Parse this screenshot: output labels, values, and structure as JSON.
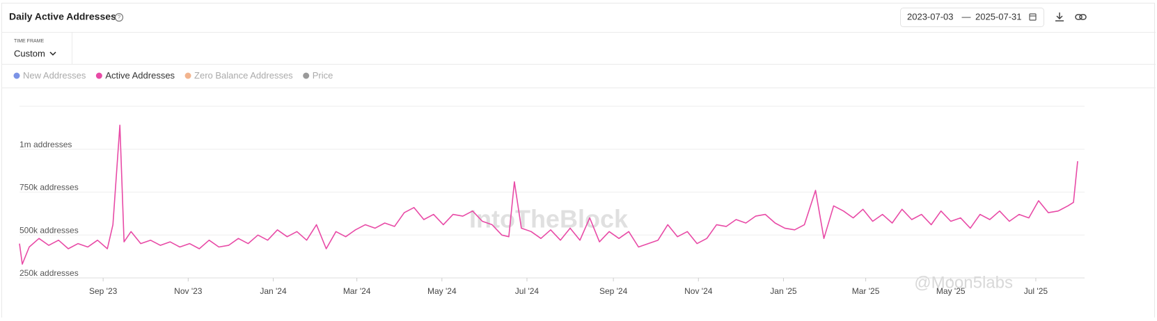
{
  "header": {
    "title": "Daily Active Addresses",
    "date_from": "2023-07-03",
    "separator": "—",
    "date_to": "2025-07-31"
  },
  "controls": {
    "timeframe_label": "TIME FRAME",
    "timeframe": "Custom"
  },
  "chart_data": {
    "type": "line",
    "hidden_series": [
      {
        "name": "New Addresses",
        "color": "#7b93e6"
      },
      {
        "name": "Zero Balance Addresses",
        "color": "#f2b48e"
      },
      {
        "name": "Price",
        "color": "#9a9a9a"
      }
    ],
    "x": [
      "2023-07-03",
      "2023-07-05",
      "2023-07-10",
      "2023-07-17",
      "2023-07-24",
      "2023-07-31",
      "2023-08-07",
      "2023-08-14",
      "2023-08-21",
      "2023-08-28",
      "2023-09-04",
      "2023-09-08",
      "2023-09-13",
      "2023-09-16",
      "2023-09-21",
      "2023-09-28",
      "2023-10-05",
      "2023-10-12",
      "2023-10-19",
      "2023-10-26",
      "2023-11-02",
      "2023-11-09",
      "2023-11-16",
      "2023-11-23",
      "2023-11-30",
      "2023-12-07",
      "2023-12-14",
      "2023-12-21",
      "2023-12-28",
      "2024-01-04",
      "2024-01-11",
      "2024-01-18",
      "2024-01-25",
      "2024-02-01",
      "2024-02-08",
      "2024-02-15",
      "2024-02-22",
      "2024-02-29",
      "2024-03-07",
      "2024-03-14",
      "2024-03-21",
      "2024-03-28",
      "2024-04-04",
      "2024-04-11",
      "2024-04-18",
      "2024-04-25",
      "2024-05-02",
      "2024-05-09",
      "2024-05-16",
      "2024-05-23",
      "2024-05-30",
      "2024-06-06",
      "2024-06-13",
      "2024-06-18",
      "2024-06-22",
      "2024-06-27",
      "2024-07-04",
      "2024-07-11",
      "2024-07-18",
      "2024-07-25",
      "2024-08-01",
      "2024-08-08",
      "2024-08-15",
      "2024-08-22",
      "2024-08-29",
      "2024-09-05",
      "2024-09-12",
      "2024-09-19",
      "2024-09-26",
      "2024-10-03",
      "2024-10-10",
      "2024-10-17",
      "2024-10-24",
      "2024-10-31",
      "2024-11-07",
      "2024-11-14",
      "2024-11-21",
      "2024-11-28",
      "2024-12-05",
      "2024-12-12",
      "2024-12-19",
      "2024-12-26",
      "2025-01-02",
      "2025-01-09",
      "2025-01-16",
      "2025-01-24",
      "2025-01-30",
      "2025-02-06",
      "2025-02-13",
      "2025-02-20",
      "2025-02-27",
      "2025-03-06",
      "2025-03-13",
      "2025-03-20",
      "2025-03-27",
      "2025-04-03",
      "2025-04-10",
      "2025-04-17",
      "2025-04-24",
      "2025-05-01",
      "2025-05-08",
      "2025-05-15",
      "2025-05-22",
      "2025-05-29",
      "2025-06-05",
      "2025-06-12",
      "2025-06-19",
      "2025-06-26",
      "2025-07-03",
      "2025-07-10",
      "2025-07-17",
      "2025-07-24",
      "2025-07-28",
      "2025-07-31"
    ],
    "series": [
      {
        "name": "Active Addresses",
        "color": "#e84aa6",
        "values": [
          450000,
          330000,
          430000,
          480000,
          440000,
          470000,
          420000,
          450000,
          430000,
          470000,
          420000,
          560000,
          1140000,
          460000,
          520000,
          450000,
          470000,
          440000,
          460000,
          430000,
          450000,
          420000,
          470000,
          430000,
          440000,
          480000,
          450000,
          500000,
          470000,
          530000,
          490000,
          520000,
          470000,
          560000,
          420000,
          520000,
          490000,
          530000,
          560000,
          540000,
          570000,
          550000,
          630000,
          660000,
          590000,
          620000,
          560000,
          620000,
          610000,
          640000,
          580000,
          560000,
          500000,
          490000,
          810000,
          540000,
          520000,
          480000,
          530000,
          470000,
          540000,
          470000,
          600000,
          460000,
          520000,
          480000,
          520000,
          430000,
          450000,
          470000,
          560000,
          490000,
          520000,
          450000,
          480000,
          560000,
          550000,
          590000,
          570000,
          610000,
          620000,
          570000,
          540000,
          530000,
          560000,
          760000,
          480000,
          670000,
          640000,
          600000,
          650000,
          580000,
          620000,
          570000,
          650000,
          590000,
          620000,
          560000,
          640000,
          580000,
          600000,
          540000,
          620000,
          590000,
          640000,
          580000,
          620000,
          600000,
          700000,
          630000,
          640000,
          670000,
          690000,
          930000
        ]
      }
    ],
    "xlim": [
      "2023-07-03",
      "2025-07-31"
    ],
    "xticks": [
      {
        "value": "2023-09-01",
        "label": "Sep '23"
      },
      {
        "value": "2023-11-01",
        "label": "Nov '23"
      },
      {
        "value": "2024-01-01",
        "label": "Jan '24"
      },
      {
        "value": "2024-03-01",
        "label": "Mar '24"
      },
      {
        "value": "2024-05-01",
        "label": "May '24"
      },
      {
        "value": "2024-07-01",
        "label": "Jul '24"
      },
      {
        "value": "2024-09-01",
        "label": "Sep '24"
      },
      {
        "value": "2024-11-01",
        "label": "Nov '24"
      },
      {
        "value": "2025-01-01",
        "label": "Jan '25"
      },
      {
        "value": "2025-03-01",
        "label": "Mar '25"
      },
      {
        "value": "2025-05-01",
        "label": "May '25"
      },
      {
        "value": "2025-07-01",
        "label": "Jul '25"
      }
    ],
    "ylim": [
      250000,
      1250000
    ],
    "yticks": [
      {
        "value": 250000,
        "label": "250k addresses"
      },
      {
        "value": 500000,
        "label": "500k addresses"
      },
      {
        "value": 750000,
        "label": "750k addresses"
      },
      {
        "value": 1000000,
        "label": "1m addresses"
      }
    ],
    "grid": true,
    "watermark": "IntoTheBlock"
  },
  "credit": "@Moon5labs"
}
